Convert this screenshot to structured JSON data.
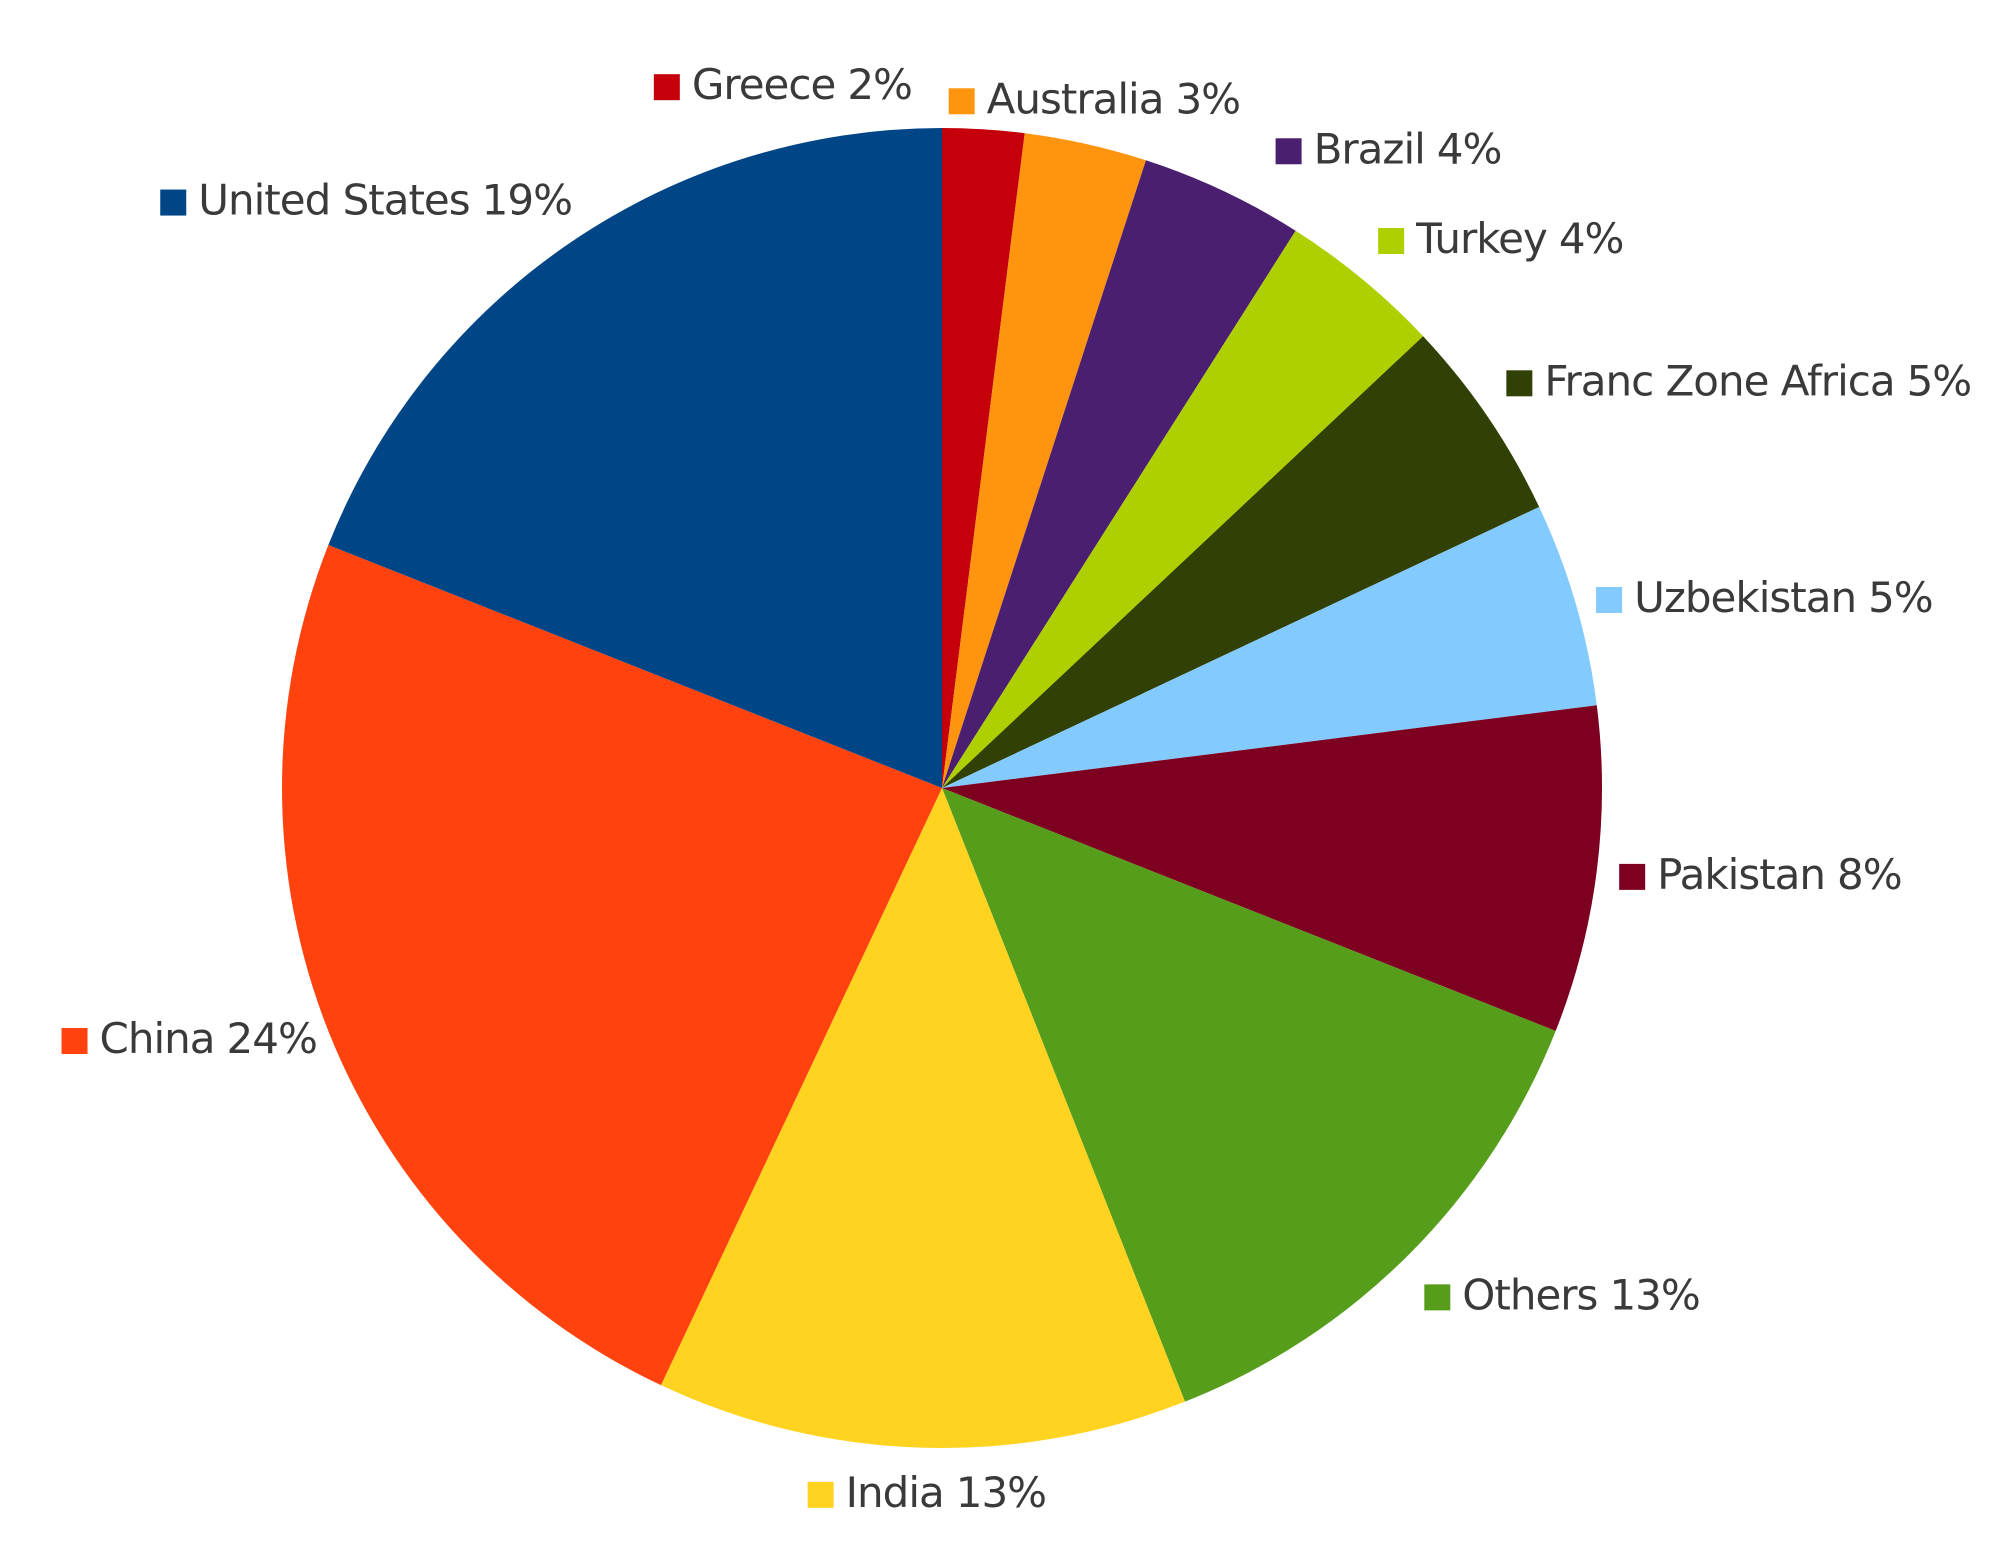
{
  "chart_data": {
    "type": "pie",
    "categories": [
      "Greece",
      "Australia",
      "Brazil",
      "Turkey",
      "Franc Zone Africa",
      "Uzbekistan",
      "Pakistan",
      "Others",
      "India",
      "China",
      "United States"
    ],
    "values": [
      2,
      3,
      4,
      4,
      5,
      5,
      8,
      13,
      13,
      24,
      19
    ],
    "value_labels": [
      "2%",
      "3%",
      "4%",
      "4%",
      "5%",
      "5%",
      "8%",
      "13%",
      "13%",
      "24%",
      "19%"
    ],
    "colors": [
      "#c5000b",
      "#ff950e",
      "#4b1f6f",
      "#aecf00",
      "#314004",
      "#83caff",
      "#7e0021",
      "#579d1c",
      "#ffd320",
      "#ff420e",
      "#004586"
    ]
  }
}
